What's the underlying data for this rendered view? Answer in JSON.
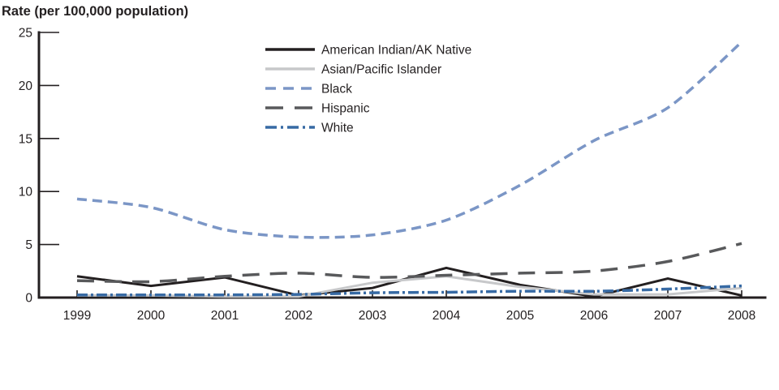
{
  "chart_data": {
    "type": "line",
    "title": "Rate (per 100,000 population)",
    "x_categories": [
      "1999",
      "2000",
      "2001",
      "2002",
      "2003",
      "2004",
      "2005",
      "2006",
      "2007",
      "2008"
    ],
    "y_ticks": [
      0,
      5,
      10,
      15,
      20,
      25
    ],
    "ylim": [
      0,
      25
    ],
    "xlabel": "",
    "ylabel": "Rate (per 100,000 population)",
    "grid": false,
    "legend_position": "top-center-inside",
    "axis_color": "#231f20",
    "series": [
      {
        "name": "American Indian/AK Native",
        "color": "#231f20",
        "pattern": "solid",
        "values": [
          2.0,
          1.1,
          1.9,
          0.2,
          0.9,
          2.8,
          1.2,
          0.1,
          1.8,
          0.2
        ]
      },
      {
        "name": "Asian/Pacific Islander",
        "color": "#c7c8ca",
        "pattern": "solid",
        "values": [
          0.2,
          0.2,
          0.1,
          0.1,
          1.4,
          2.0,
          1.0,
          0.3,
          0.3,
          0.9
        ]
      },
      {
        "name": "Black",
        "color": "#7b96c6",
        "pattern": "dashed",
        "values": [
          9.3,
          8.5,
          6.4,
          5.7,
          5.9,
          7.3,
          10.6,
          14.8,
          17.9,
          24.1
        ]
      },
      {
        "name": "Hispanic",
        "color": "#58595b",
        "pattern": "long-dash",
        "values": [
          1.6,
          1.5,
          2.0,
          2.3,
          1.9,
          2.1,
          2.3,
          2.5,
          3.4,
          5.1
        ]
      },
      {
        "name": "White",
        "color": "#376aa4",
        "pattern": "dash-dot",
        "values": [
          0.25,
          0.25,
          0.25,
          0.3,
          0.45,
          0.5,
          0.6,
          0.6,
          0.8,
          1.1
        ]
      }
    ]
  }
}
